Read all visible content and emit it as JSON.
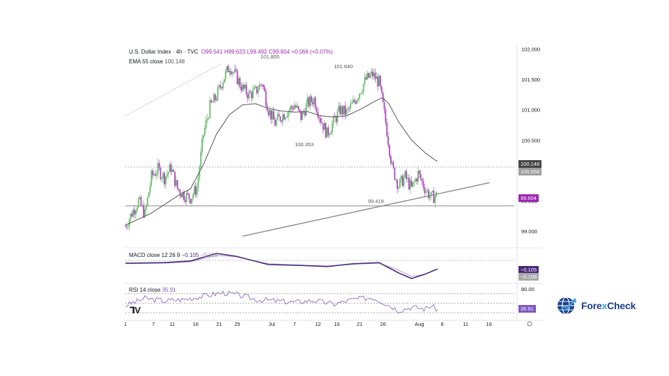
{
  "header": {
    "symbol": "U.S. Dollar Index · 4h · TVC",
    "open": "O99.541",
    "high": "H99.623",
    "low": "L99.492",
    "close": "C99.604",
    "change": "+0.066 (+0.07%)"
  },
  "indicators": {
    "ema": {
      "label": "EMA 55 close",
      "value": "100.148"
    },
    "macd": {
      "label": "MACD close 12 26 9",
      "v1": "−0.105",
      "v2": "−0.108"
    },
    "rsi": {
      "label": "RSI 14 close",
      "value": "35.91"
    }
  },
  "annotations": [
    {
      "text": "101.800",
      "x": 22.2,
      "y": 101.8
    },
    {
      "text": "101.640",
      "x": 33.5,
      "y": 101.64
    },
    {
      "text": "100.353",
      "x": 27.5,
      "y": 100.353
    },
    {
      "text": "99.418",
      "x": 38.5,
      "y": 99.418
    }
  ],
  "price_tags": {
    "ema": {
      "text": "100.148",
      "color": "#444444"
    },
    "prev": {
      "text": "100.058",
      "color": "#b0b0b0"
    },
    "last": {
      "text": "99.604",
      "color": "#9c27b0"
    },
    "macd1": {
      "text": "−0.105",
      "color": "#4a2a7a"
    },
    "macd2": {
      "text": "−0.108",
      "color": "#b0b0b0"
    },
    "rsi": {
      "text": "35.91",
      "color": "#7e57c2"
    }
  },
  "brand": {
    "name_a": "Fore",
    "name_x": "x",
    "name_b": "Check"
  },
  "colors": {
    "bull": "#66bb6a",
    "bear": "#ab47bc",
    "ema": "#555555",
    "macd": "#4a2a7a",
    "rsi": "#7e57c2"
  },
  "chart_data": {
    "type": "candlestick",
    "y_ticks": [
      "102.000",
      "101.500",
      "101.000",
      "100.500",
      "100.000",
      "99.500",
      "99.000"
    ],
    "ylim": [
      98.75,
      102.05
    ],
    "x_ticks": [
      {
        "label": "1",
        "x": 0
      },
      {
        "label": "7",
        "x": 4.3
      },
      {
        "label": "11",
        "x": 7.2
      },
      {
        "label": "16",
        "x": 10.8
      },
      {
        "label": "21",
        "x": 14.4
      },
      {
        "label": "25",
        "x": 17.2
      },
      {
        "label": "Jul",
        "x": 22.5
      },
      {
        "label": "7",
        "x": 26.0
      },
      {
        "label": "12",
        "x": 29.6
      },
      {
        "label": "16",
        "x": 32.5
      },
      {
        "label": "21",
        "x": 36.0
      },
      {
        "label": "26",
        "x": 39.6
      },
      {
        "label": "Aug",
        "x": 45.2
      },
      {
        "label": "6",
        "x": 48.7
      },
      {
        "label": "11",
        "x": 52.3
      },
      {
        "label": "16",
        "x": 55.9
      }
    ],
    "xlim": [
      0,
      60
    ],
    "close_path": [
      [
        0,
        99.08
      ],
      [
        1,
        99.3
      ],
      [
        2,
        99.5
      ],
      [
        3,
        99.28
      ],
      [
        4,
        99.9
      ],
      [
        5,
        100.02
      ],
      [
        6,
        99.88
      ],
      [
        7,
        100.05
      ],
      [
        8,
        99.7
      ],
      [
        9,
        99.6
      ],
      [
        10,
        99.55
      ],
      [
        11,
        99.72
      ],
      [
        12,
        100.6
      ],
      [
        13,
        101.05
      ],
      [
        14,
        101.22
      ],
      [
        15,
        101.5
      ],
      [
        16,
        101.72
      ],
      [
        17,
        101.55
      ],
      [
        18,
        101.35
      ],
      [
        19,
        101.25
      ],
      [
        20,
        101.3
      ],
      [
        21,
        101.45
      ],
      [
        22,
        101.0
      ],
      [
        23,
        100.78
      ],
      [
        24,
        100.9
      ],
      [
        25,
        100.98
      ],
      [
        26,
        101.08
      ],
      [
        27,
        100.88
      ],
      [
        28,
        101.1
      ],
      [
        29,
        101.18
      ],
      [
        30,
        100.85
      ],
      [
        31,
        100.6
      ],
      [
        32,
        100.8
      ],
      [
        33,
        101.0
      ],
      [
        34,
        100.95
      ],
      [
        35,
        101.1
      ],
      [
        36,
        101.3
      ],
      [
        37,
        101.5
      ],
      [
        38,
        101.58
      ],
      [
        39,
        101.45
      ],
      [
        40,
        100.8
      ],
      [
        41,
        100.05
      ],
      [
        42,
        99.75
      ],
      [
        43,
        99.9
      ],
      [
        44,
        99.7
      ],
      [
        45,
        99.95
      ],
      [
        46,
        99.72
      ],
      [
        47,
        99.55
      ],
      [
        48,
        99.604
      ]
    ],
    "ema55": [
      [
        0,
        99.1
      ],
      [
        4,
        99.3
      ],
      [
        8,
        99.58
      ],
      [
        10,
        99.7
      ],
      [
        12,
        100.1
      ],
      [
        14,
        100.6
      ],
      [
        16,
        100.92
      ],
      [
        18,
        101.08
      ],
      [
        20,
        101.1
      ],
      [
        22,
        101.02
      ],
      [
        24,
        100.98
      ],
      [
        26,
        100.96
      ],
      [
        28,
        100.97
      ],
      [
        30,
        100.9
      ],
      [
        32,
        100.88
      ],
      [
        34,
        100.9
      ],
      [
        36,
        101.0
      ],
      [
        38,
        101.12
      ],
      [
        39.5,
        101.2
      ],
      [
        40.5,
        101.1
      ],
      [
        42,
        100.8
      ],
      [
        44,
        100.5
      ],
      [
        46,
        100.3
      ],
      [
        47.5,
        100.18
      ],
      [
        48,
        100.148
      ]
    ],
    "support": 99.418,
    "resistance_dotted": 100.058,
    "trendline": [
      [
        18,
        98.92
      ],
      [
        56,
        99.8
      ]
    ],
    "upper_trend": [
      [
        0,
        100.9
      ],
      [
        14.6,
        101.75
      ]
    ],
    "macd": [
      [
        0,
        0.1
      ],
      [
        6,
        0.12
      ],
      [
        10,
        0.18
      ],
      [
        14,
        0.45
      ],
      [
        17,
        0.35
      ],
      [
        22,
        0.05
      ],
      [
        27,
        0.02
      ],
      [
        31,
        -0.02
      ],
      [
        35,
        0.08
      ],
      [
        39,
        0.12
      ],
      [
        42,
        -0.25
      ],
      [
        44,
        -0.45
      ],
      [
        46,
        -0.3
      ],
      [
        48,
        -0.105
      ]
    ],
    "macd_signal": [
      [
        0,
        0.08
      ],
      [
        6,
        0.1
      ],
      [
        10,
        0.15
      ],
      [
        14,
        0.38
      ],
      [
        17,
        0.33
      ],
      [
        22,
        0.08
      ],
      [
        27,
        0.03
      ],
      [
        31,
        0.0
      ],
      [
        35,
        0.06
      ],
      [
        39,
        0.1
      ],
      [
        42,
        -0.15
      ],
      [
        44,
        -0.38
      ],
      [
        46,
        -0.3
      ],
      [
        48,
        -0.108
      ]
    ],
    "rsi_levels": [
      "80.00"
    ],
    "rsi": [
      [
        0,
        45
      ],
      [
        3,
        60
      ],
      [
        6,
        55
      ],
      [
        9,
        58
      ],
      [
        12,
        65
      ],
      [
        15,
        72
      ],
      [
        17,
        68
      ],
      [
        20,
        58
      ],
      [
        23,
        55
      ],
      [
        26,
        52
      ],
      [
        29,
        56
      ],
      [
        32,
        48
      ],
      [
        35,
        58
      ],
      [
        38,
        62
      ],
      [
        40,
        50
      ],
      [
        42,
        35
      ],
      [
        44,
        42
      ],
      [
        46,
        38
      ],
      [
        47,
        45
      ],
      [
        48,
        35.91
      ]
    ]
  }
}
